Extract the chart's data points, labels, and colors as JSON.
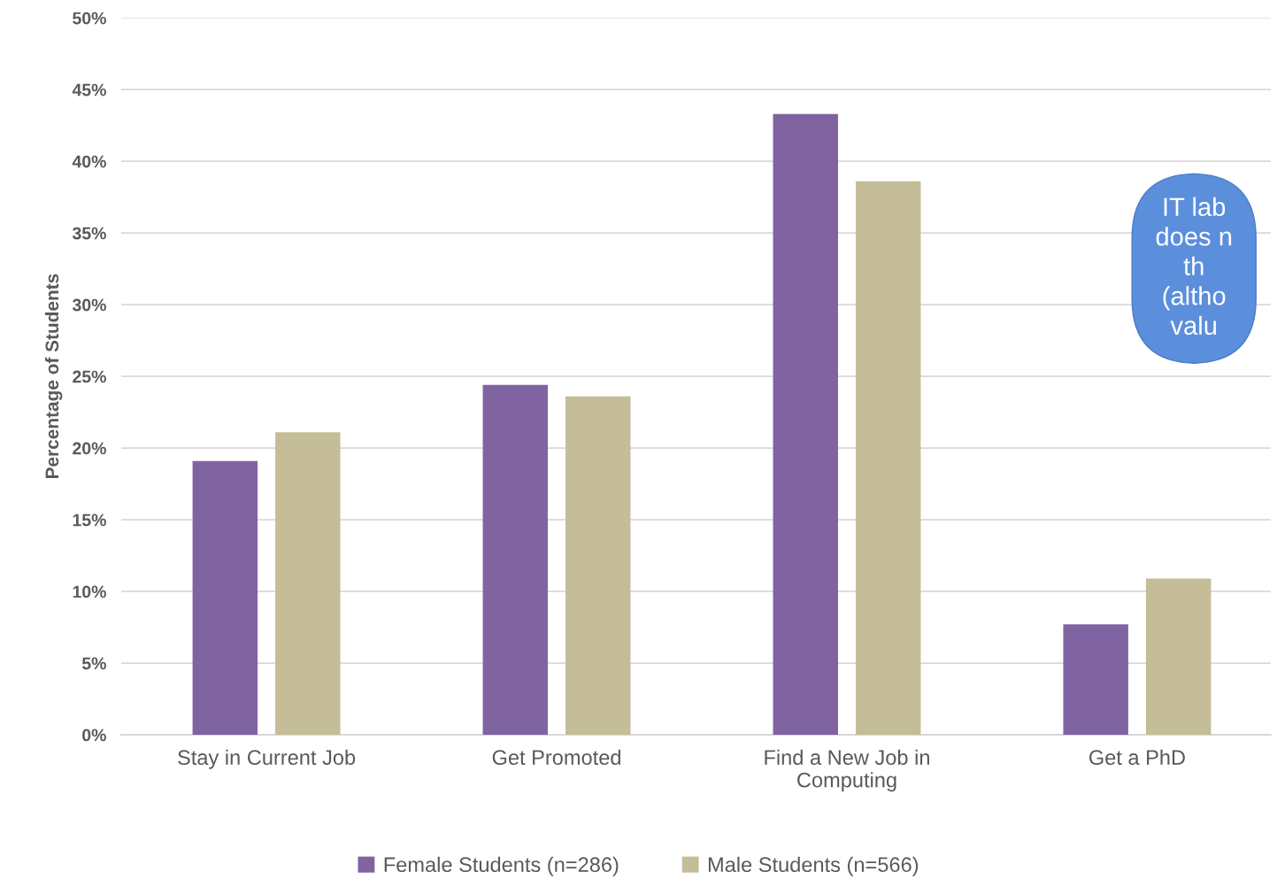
{
  "chart_data": {
    "type": "bar",
    "ylabel": "Percentage of Students",
    "categories": [
      "Stay in Current Job",
      "Get Promoted",
      "Find a New Job in\nComputing",
      "Get a PhD"
    ],
    "series": [
      {
        "name": "Female Students (n=286)",
        "color": "#8064a2",
        "values": [
          19.1,
          24.4,
          43.3,
          7.7
        ]
      },
      {
        "name": "Male Students (n=566)",
        "color": "#c4bd97",
        "values": [
          21.1,
          23.6,
          38.6,
          10.9
        ]
      }
    ],
    "ylim": [
      0,
      50
    ],
    "yticks": [
      {
        "value": 0,
        "label": "0%"
      },
      {
        "value": 5,
        "label": "5%"
      },
      {
        "value": 10,
        "label": "10%"
      },
      {
        "value": 15,
        "label": "15%"
      },
      {
        "value": 20,
        "label": "20%"
      },
      {
        "value": 25,
        "label": "25%"
      },
      {
        "value": 30,
        "label": "30%"
      },
      {
        "value": 35,
        "label": "35%"
      },
      {
        "value": 40,
        "label": "40%"
      },
      {
        "value": 45,
        "label": "45%"
      },
      {
        "value": 50,
        "label": "50%"
      }
    ],
    "grid": "y",
    "legend": "bottom",
    "annotations": [
      "IT lab\ndoes n\nth\n(altho\nvalu"
    ]
  }
}
